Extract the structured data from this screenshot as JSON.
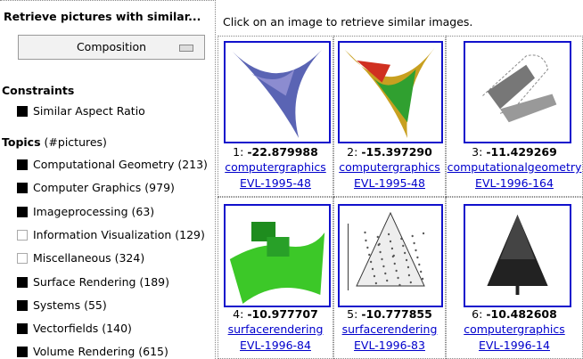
{
  "sidebar": {
    "title": "Retrieve pictures with similar...",
    "button": "Composition",
    "constraints": {
      "heading": "Constraints",
      "items": [
        {
          "label": "Similar Aspect Ratio",
          "checked": true
        }
      ]
    },
    "topics": {
      "heading": "Topics",
      "subheading": "(#pictures)",
      "items": [
        {
          "label": "Computational Geometry (213)",
          "checked": true
        },
        {
          "label": "Computer Graphics (979)",
          "checked": true
        },
        {
          "label": "Imageprocessing (63)",
          "checked": true
        },
        {
          "label": "Information Visualization (129)",
          "checked": false
        },
        {
          "label": "Miscellaneous (324)",
          "checked": false
        },
        {
          "label": "Surface Rendering (189)",
          "checked": true
        },
        {
          "label": "Systems (55)",
          "checked": true
        },
        {
          "label": "Vectorfields (140)",
          "checked": true
        },
        {
          "label": "Volume Rendering (615)",
          "checked": true
        }
      ]
    }
  },
  "results": {
    "instruction": "Click on an image to retrieve similar images.",
    "items": [
      {
        "rank": "1:",
        "score": "-22.879988",
        "category": "computergraphics",
        "id": "EVL-1995-48"
      },
      {
        "rank": "2:",
        "score": "-15.397290",
        "category": "computergraphics",
        "id": "EVL-1995-48"
      },
      {
        "rank": "3:",
        "score": "-11.429269",
        "category": "computationalgeometry",
        "id": "EVL-1996-164"
      },
      {
        "rank": "4:",
        "score": "-10.977707",
        "category": "surfacerendering",
        "id": "EVL-1996-84"
      },
      {
        "rank": "5:",
        "score": "-10.777855",
        "category": "surfacerendering",
        "id": "EVL-1996-83"
      },
      {
        "rank": "6:",
        "score": "-10.482608",
        "category": "computergraphics",
        "id": "EVL-1996-14"
      }
    ]
  }
}
